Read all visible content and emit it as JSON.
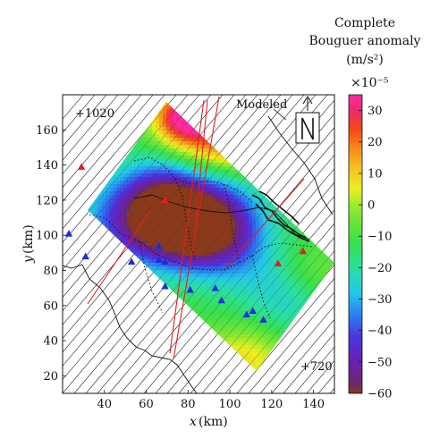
{
  "chart_data": {
    "type": "heatmap",
    "title": "",
    "xlabel": "x",
    "xunit": "(km)",
    "ylabel": "y",
    "yunit": "(km)",
    "xlim": [
      20,
      150
    ],
    "ylim": [
      10,
      180
    ],
    "x_ticks": [
      40,
      60,
      80,
      100,
      120,
      140
    ],
    "y_ticks": [
      20,
      40,
      60,
      80,
      100,
      120,
      140,
      160
    ],
    "grid": false,
    "legend_position": "right",
    "corner_labels": {
      "top_left": "+1020",
      "bottom_right": "+720"
    },
    "annotation": "Modeled",
    "colorbar": {
      "title_line1": "Complete",
      "title_line2": "Bouguer anomaly",
      "unit": "(m/s²)",
      "scale": "×10⁻⁵",
      "range": [
        -60,
        35
      ],
      "ticks": [
        30,
        20,
        10,
        0,
        -10,
        -20,
        -30,
        -40,
        -50,
        -60
      ],
      "tick_labels": [
        "30",
        "20",
        "10",
        "0",
        "−10",
        "−20",
        "−30",
        "−40",
        "−50",
        "−60"
      ],
      "colors": [
        {
          "v": -60,
          "c": "#8a3a1a"
        },
        {
          "v": -57,
          "c": "#6a2a6a"
        },
        {
          "v": -50,
          "c": "#6a1fb0"
        },
        {
          "v": -42,
          "c": "#4a35e0"
        },
        {
          "v": -35,
          "c": "#2a7ff0"
        },
        {
          "v": -28,
          "c": "#22c8e8"
        },
        {
          "v": -20,
          "c": "#2bdfa0"
        },
        {
          "v": -12,
          "c": "#37e04a"
        },
        {
          "v": -2,
          "c": "#88e830"
        },
        {
          "v": 5,
          "c": "#e8f020"
        },
        {
          "v": 12,
          "c": "#f5c020"
        },
        {
          "v": 18,
          "c": "#f58a18"
        },
        {
          "v": 24,
          "c": "#f04a18"
        },
        {
          "v": 30,
          "c": "#ee2a6a"
        },
        {
          "v": 35,
          "c": "#ff2aa0"
        }
      ]
    },
    "anomaly_centers": [
      {
        "x": 60,
        "y": 110,
        "v": -55,
        "s": 18
      },
      {
        "x": 95,
        "y": 100,
        "v": -50,
        "s": 16
      },
      {
        "x": 78,
        "y": 108,
        "v": -52,
        "s": 14
      },
      {
        "x": 30,
        "y": 95,
        "v": -15,
        "s": 14
      },
      {
        "x": 90,
        "y": 158,
        "v": 15,
        "s": 16
      },
      {
        "x": 78,
        "y": 168,
        "v": 25,
        "s": 10
      },
      {
        "x": 110,
        "y": 150,
        "v": 10,
        "s": 14
      },
      {
        "x": 100,
        "y": 130,
        "v": -25,
        "s": 14
      },
      {
        "x": 70,
        "y": 130,
        "v": -25,
        "s": 12
      },
      {
        "x": 60,
        "y": 35,
        "v": 5,
        "s": 14
      },
      {
        "x": 85,
        "y": 20,
        "v": 12,
        "s": 12
      },
      {
        "x": 110,
        "y": 30,
        "v": 5,
        "s": 14
      },
      {
        "x": 120,
        "y": 70,
        "v": -22,
        "s": 14
      },
      {
        "x": 140,
        "y": 80,
        "v": -5,
        "s": 12
      },
      {
        "x": 130,
        "y": 55,
        "v": -18,
        "s": 12
      }
    ],
    "base_value": -12,
    "stations_blue": [
      {
        "x": 23,
        "y": 101
      },
      {
        "x": 31,
        "y": 88
      },
      {
        "x": 53,
        "y": 85
      },
      {
        "x": 66,
        "y": 86
      },
      {
        "x": 69,
        "y": 85
      },
      {
        "x": 69,
        "y": 71
      },
      {
        "x": 81,
        "y": 69
      },
      {
        "x": 93,
        "y": 70
      },
      {
        "x": 96,
        "y": 63
      },
      {
        "x": 108,
        "y": 55
      },
      {
        "x": 111,
        "y": 57
      },
      {
        "x": 116,
        "y": 52
      },
      {
        "x": 66,
        "y": 94
      }
    ],
    "stations_red": [
      {
        "x": 29,
        "y": 139
      },
      {
        "x": 69,
        "y": 120
      },
      {
        "x": 123,
        "y": 84
      },
      {
        "x": 135,
        "y": 91
      }
    ]
  }
}
